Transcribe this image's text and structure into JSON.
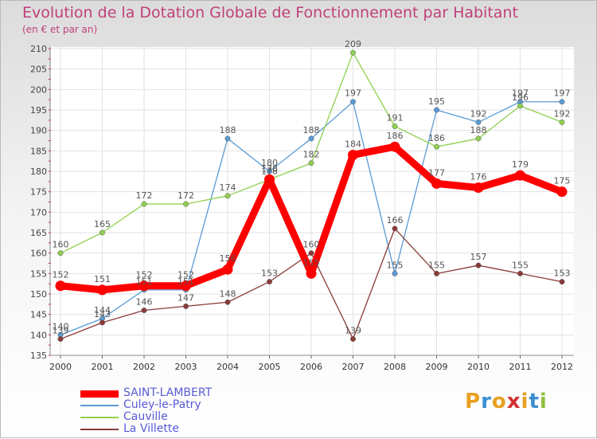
{
  "title": "Evolution de la Dotation Globale de Fonctionnement par Habitant",
  "subtitle": "(en € et par an)",
  "logo_text": "Proxiti",
  "chart_data": {
    "type": "line",
    "title": "Evolution de la Dotation Globale de Fonctionnement par Habitant",
    "ylabel": "(en € et par an)",
    "xlabel": "",
    "categories": [
      "2000",
      "2001",
      "2002",
      "2003",
      "2004",
      "2005",
      "2006",
      "2007",
      "2008",
      "2009",
      "2010",
      "2011",
      "2012"
    ],
    "ylim": [
      135,
      210
    ],
    "yticks": [
      135,
      140,
      145,
      150,
      155,
      160,
      165,
      170,
      175,
      180,
      185,
      190,
      195,
      200,
      205,
      210
    ],
    "legend_position": "bottom-left",
    "series": [
      {
        "name": "SAINT-LAMBERT",
        "color": "#ff0000",
        "emphasis": true,
        "values": [
          152,
          151,
          152,
          152,
          156,
          178,
          155,
          184,
          186,
          177,
          176,
          179,
          175
        ]
      },
      {
        "name": "Culey-le-Patry",
        "color": "#5b9bd5",
        "values": [
          140,
          144,
          151,
          151,
          188,
          180,
          188,
          197,
          155,
          195,
          192,
          197,
          197
        ]
      },
      {
        "name": "Cauville",
        "color": "#90d050",
        "values": [
          160,
          165,
          172,
          172,
          174,
          178,
          182,
          209,
          191,
          186,
          188,
          196,
          192
        ]
      },
      {
        "name": "La Villette",
        "color": "#8b3a3a",
        "values": [
          139,
          143,
          146,
          147,
          148,
          153,
          160,
          139,
          166,
          155,
          157,
          155,
          153
        ]
      }
    ]
  }
}
